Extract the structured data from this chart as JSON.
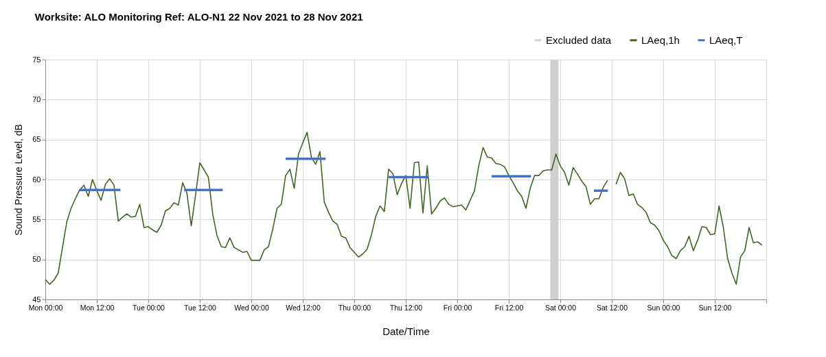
{
  "chart_data": {
    "type": "line",
    "title": "Worksite: ALO    Monitoring Ref: ALO-N1      22 Nov 2021 to 28 Nov 2021",
    "xlabel": "Date/Time",
    "ylabel": "Sound Pressure Level, dB",
    "x": [
      "2021-11-22T00:00",
      "2021-11-22T01:00",
      "2021-11-22T02:00",
      "2021-11-22T03:00",
      "2021-11-22T04:00",
      "2021-11-22T05:00",
      "2021-11-22T06:00",
      "2021-11-22T07:00",
      "2021-11-22T08:00",
      "2021-11-22T09:00",
      "2021-11-22T10:00",
      "2021-11-22T11:00",
      "2021-11-22T12:00",
      "2021-11-22T13:00",
      "2021-11-22T14:00",
      "2021-11-22T15:00",
      "2021-11-22T16:00",
      "2021-11-22T17:00",
      "2021-11-22T18:00",
      "2021-11-22T19:00",
      "2021-11-22T20:00",
      "2021-11-22T21:00",
      "2021-11-22T22:00",
      "2021-11-22T23:00",
      "2021-11-23T00:00",
      "2021-11-23T01:00",
      "2021-11-23T02:00",
      "2021-11-23T03:00",
      "2021-11-23T04:00",
      "2021-11-23T05:00",
      "2021-11-23T06:00",
      "2021-11-23T07:00",
      "2021-11-23T08:00",
      "2021-11-23T09:00",
      "2021-11-23T10:00",
      "2021-11-23T11:00",
      "2021-11-23T12:00",
      "2021-11-23T13:00",
      "2021-11-23T14:00",
      "2021-11-23T15:00",
      "2021-11-23T16:00",
      "2021-11-23T17:00",
      "2021-11-23T18:00",
      "2021-11-23T19:00",
      "2021-11-23T20:00",
      "2021-11-23T21:00",
      "2021-11-23T22:00",
      "2021-11-23T23:00",
      "2021-11-24T00:00",
      "2021-11-24T01:00",
      "2021-11-24T02:00",
      "2021-11-24T03:00",
      "2021-11-24T04:00",
      "2021-11-24T05:00",
      "2021-11-24T06:00",
      "2021-11-24T07:00",
      "2021-11-24T08:00",
      "2021-11-24T09:00",
      "2021-11-24T10:00",
      "2021-11-24T11:00",
      "2021-11-24T12:00",
      "2021-11-24T13:00",
      "2021-11-24T14:00",
      "2021-11-24T15:00",
      "2021-11-24T16:00",
      "2021-11-24T17:00",
      "2021-11-24T18:00",
      "2021-11-24T19:00",
      "2021-11-24T20:00",
      "2021-11-24T21:00",
      "2021-11-24T22:00",
      "2021-11-24T23:00",
      "2021-11-25T00:00",
      "2021-11-25T01:00",
      "2021-11-25T02:00",
      "2021-11-25T03:00",
      "2021-11-25T04:00",
      "2021-11-25T05:00",
      "2021-11-25T06:00",
      "2021-11-25T07:00",
      "2021-11-25T08:00",
      "2021-11-25T09:00",
      "2021-11-25T10:00",
      "2021-11-25T11:00",
      "2021-11-25T12:00",
      "2021-11-25T13:00",
      "2021-11-25T14:00",
      "2021-11-25T15:00",
      "2021-11-25T16:00",
      "2021-11-25T17:00",
      "2021-11-25T18:00",
      "2021-11-25T19:00",
      "2021-11-25T20:00",
      "2021-11-25T21:00",
      "2021-11-25T22:00",
      "2021-11-25T23:00",
      "2021-11-26T00:00",
      "2021-11-26T01:00",
      "2021-11-26T02:00",
      "2021-11-26T03:00",
      "2021-11-26T04:00",
      "2021-11-26T05:00",
      "2021-11-26T06:00",
      "2021-11-26T07:00",
      "2021-11-26T08:00",
      "2021-11-26T09:00",
      "2021-11-26T10:00",
      "2021-11-26T11:00",
      "2021-11-26T12:00",
      "2021-11-26T13:00",
      "2021-11-26T14:00",
      "2021-11-26T15:00",
      "2021-11-26T16:00",
      "2021-11-26T17:00",
      "2021-11-26T18:00",
      "2021-11-26T19:00",
      "2021-11-26T20:00",
      "2021-11-26T21:00",
      "2021-11-26T22:00",
      "2021-11-26T23:00",
      "2021-11-27T00:00",
      "2021-11-27T01:00",
      "2021-11-27T02:00",
      "2021-11-27T03:00",
      "2021-11-27T04:00",
      "2021-11-27T05:00",
      "2021-11-27T06:00",
      "2021-11-27T07:00",
      "2021-11-27T08:00",
      "2021-11-27T09:00",
      "2021-11-27T10:00",
      "2021-11-27T11:00",
      "2021-11-27T12:00",
      "2021-11-27T13:00",
      "2021-11-27T14:00",
      "2021-11-27T15:00",
      "2021-11-27T16:00",
      "2021-11-27T17:00",
      "2021-11-27T18:00",
      "2021-11-27T19:00",
      "2021-11-27T20:00",
      "2021-11-27T21:00",
      "2021-11-27T22:00",
      "2021-11-27T23:00",
      "2021-11-28T00:00",
      "2021-11-28T01:00",
      "2021-11-28T02:00",
      "2021-11-28T03:00",
      "2021-11-28T04:00",
      "2021-11-28T05:00",
      "2021-11-28T06:00",
      "2021-11-28T07:00",
      "2021-11-28T08:00",
      "2021-11-28T09:00",
      "2021-11-28T10:00",
      "2021-11-28T11:00",
      "2021-11-28T12:00",
      "2021-11-28T13:00",
      "2021-11-28T14:00",
      "2021-11-28T15:00",
      "2021-11-28T16:00",
      "2021-11-28T17:00",
      "2021-11-28T18:00",
      "2021-11-28T19:00",
      "2021-11-28T20:00",
      "2021-11-28T21:00",
      "2021-11-28T22:00",
      "2021-11-28T23:00"
    ],
    "series": [
      {
        "name": "LAeq,1h",
        "color": "#3f6424",
        "values": [
          47.5,
          46.9,
          47.4,
          48.3,
          51.5,
          54.7,
          56.4,
          57.6,
          58.7,
          59.3,
          57.9,
          60.0,
          58.6,
          57.4,
          59.4,
          60.1,
          59.3,
          54.8,
          55.3,
          55.7,
          55.3,
          55.4,
          56.9,
          54.0,
          54.1,
          53.7,
          53.4,
          54.3,
          56.1,
          56.4,
          57.1,
          56.8,
          59.6,
          58.3,
          54.2,
          58.0,
          62.1,
          61.2,
          60.3,
          55.7,
          53.0,
          51.6,
          51.5,
          52.7,
          51.5,
          51.2,
          50.9,
          51.0,
          49.9,
          49.9,
          49.9,
          51.2,
          51.6,
          53.8,
          56.4,
          56.9,
          60.5,
          61.3,
          58.9,
          63.2,
          64.6,
          65.9,
          62.8,
          61.9,
          63.5,
          57.2,
          55.9,
          54.8,
          54.4,
          52.9,
          52.7,
          51.5,
          50.9,
          50.3,
          50.7,
          51.3,
          53.1,
          55.4,
          56.7,
          56.0,
          61.3,
          60.7,
          58.1,
          59.5,
          60.5,
          56.4,
          62.1,
          62.2,
          55.8,
          61.7,
          55.7,
          56.4,
          57.3,
          57.7,
          56.9,
          56.6,
          56.7,
          56.8,
          56.2,
          57.4,
          58.6,
          61.7,
          64.0,
          62.8,
          62.7,
          62.0,
          61.9,
          61.6,
          60.5,
          59.6,
          58.6,
          57.9,
          56.4,
          58.9,
          60.5,
          60.5,
          61.1,
          61.2,
          61.2,
          63.2,
          61.7,
          60.9,
          59.3,
          61.5,
          60.7,
          59.8,
          59.1,
          56.9,
          57.6,
          57.6,
          59.0,
          59.9,
          null,
          59.4,
          60.9,
          60.1,
          58.0,
          58.2,
          56.9,
          56.5,
          55.9,
          54.6,
          54.3,
          53.6,
          52.4,
          51.6,
          50.5,
          50.1,
          51.1,
          51.6,
          52.9,
          51.1,
          52.4,
          54.1,
          54.0,
          53.1,
          53.2,
          56.7,
          54.0,
          50.1,
          48.3,
          46.9,
          50.3,
          51.1,
          54.0,
          52.1,
          52.2,
          51.8
        ]
      },
      {
        "name": "LAeq,T",
        "color": "#4472c4",
        "x": [
          "2021-11-22T08:00",
          "2021-11-22T17:30",
          "2021-11-22T20:00",
          "2021-11-23T08:20",
          "2021-11-23T17:20",
          "2021-11-24T00:00",
          "2021-11-24T08:00",
          "2021-11-24T17:20",
          "2021-11-25T00:00",
          "2021-11-25T08:00",
          "2021-11-25T17:10",
          "2021-11-26T00:00",
          "2021-11-26T08:00",
          "2021-11-26T17:10",
          "2021-11-27T00:00",
          "2021-11-27T07:50",
          "2021-11-27T11:05"
        ],
        "values": [
          58.7,
          58.7,
          null,
          58.7,
          58.7,
          null,
          62.6,
          62.6,
          null,
          60.3,
          60.3,
          null,
          60.4,
          60.4,
          null,
          58.6,
          58.6
        ]
      }
    ],
    "bands": [
      {
        "axis": "x",
        "from": "2021-11-26T21:40",
        "to": "2021-11-26T23:35",
        "label": "Excluded data",
        "color": "#d0d0d0"
      }
    ],
    "xlim": [
      "2021-11-22T00:00",
      "2021-11-29T00:00"
    ],
    "xticks": [
      {
        "value": "2021-11-22T00:00",
        "label": "Mon 00:00"
      },
      {
        "value": "2021-11-22T12:00",
        "label": "Mon 12:00"
      },
      {
        "value": "2021-11-23T00:00",
        "label": "Tue 00:00"
      },
      {
        "value": "2021-11-23T12:00",
        "label": "Tue 12:00"
      },
      {
        "value": "2021-11-24T00:00",
        "label": "Wed 00:00"
      },
      {
        "value": "2021-11-24T12:00",
        "label": "Wed 12:00"
      },
      {
        "value": "2021-11-25T00:00",
        "label": "Thu 00:00"
      },
      {
        "value": "2021-11-25T12:00",
        "label": "Thu 12:00"
      },
      {
        "value": "2021-11-26T00:00",
        "label": "Fri 00:00"
      },
      {
        "value": "2021-11-26T12:00",
        "label": "Fri 12:00"
      },
      {
        "value": "2021-11-27T00:00",
        "label": "Sat 00:00"
      },
      {
        "value": "2021-11-27T12:00",
        "label": "Sat 12:00"
      },
      {
        "value": "2021-11-28T00:00",
        "label": "Sun 00:00"
      },
      {
        "value": "2021-11-28T12:00",
        "label": "Sun 12:00"
      },
      {
        "value": "2021-11-29T00:00",
        "label": null
      }
    ],
    "ylim": [
      45,
      75
    ],
    "yticks": [
      45,
      50,
      55,
      60,
      65,
      70,
      75
    ],
    "grid": true,
    "legend": "top right"
  }
}
